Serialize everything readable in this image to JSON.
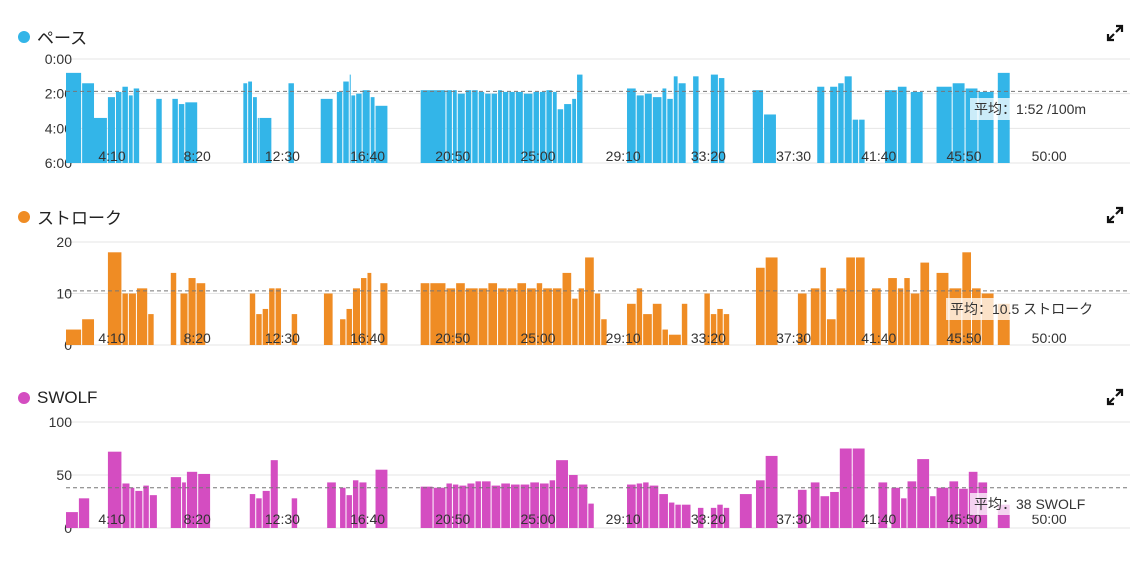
{
  "chart_data": [
    {
      "type": "bar",
      "title": "ペース",
      "color": "#33b5e8",
      "yticks": [
        "0:00",
        "2:00",
        "4:00",
        "6:00"
      ],
      "y_axis_inverted": true,
      "ylim": [
        0,
        6
      ],
      "xlim": [
        0,
        3300
      ],
      "xticks": [
        "4:10",
        "8:20",
        "12:30",
        "16:40",
        "20:50",
        "25:00",
        "29:10",
        "33:20",
        "37:30",
        "41:40",
        "45:50",
        "50:00"
      ],
      "average_value": 1.87,
      "average_label": "平均：1:52 /100m",
      "bars": [
        [
          0,
          50,
          0.8
        ],
        [
          50,
          90,
          1.4
        ],
        [
          70,
          130,
          3.4
        ],
        [
          130,
          155,
          2.2
        ],
        [
          155,
          175,
          1.9
        ],
        [
          175,
          195,
          1.6
        ],
        [
          195,
          210,
          2.1
        ],
        [
          210,
          230,
          1.7
        ],
        [
          280,
          300,
          2.3
        ],
        [
          330,
          350,
          2.3
        ],
        [
          350,
          370,
          2.6
        ],
        [
          370,
          410,
          2.5
        ],
        [
          550,
          565,
          1.4
        ],
        [
          565,
          580,
          1.3
        ],
        [
          580,
          595,
          2.2
        ],
        [
          595,
          600,
          3.4
        ],
        [
          600,
          640,
          3.4
        ],
        [
          690,
          710,
          1.4
        ],
        [
          790,
          830,
          2.3
        ],
        [
          840,
          860,
          1.9
        ],
        [
          860,
          880,
          1.3
        ],
        [
          880,
          885,
          0.9
        ],
        [
          885,
          900,
          2.1
        ],
        [
          900,
          920,
          2.0
        ],
        [
          920,
          945,
          1.8
        ],
        [
          945,
          960,
          2.2
        ],
        [
          960,
          1000,
          2.7
        ],
        [
          1100,
          1180,
          1.8
        ],
        [
          1180,
          1200,
          1.8
        ],
        [
          1200,
          1215,
          1.8
        ],
        [
          1215,
          1240,
          2.0
        ],
        [
          1240,
          1260,
          1.8
        ],
        [
          1260,
          1280,
          1.8
        ],
        [
          1280,
          1300,
          1.9
        ],
        [
          1300,
          1320,
          2.0
        ],
        [
          1320,
          1340,
          2.0
        ],
        [
          1340,
          1355,
          1.8
        ],
        [
          1355,
          1375,
          1.9
        ],
        [
          1375,
          1395,
          1.9
        ],
        [
          1395,
          1420,
          1.9
        ],
        [
          1420,
          1450,
          2.0
        ],
        [
          1450,
          1470,
          1.9
        ],
        [
          1470,
          1490,
          1.9
        ],
        [
          1490,
          1510,
          1.8
        ],
        [
          1510,
          1525,
          1.9
        ],
        [
          1525,
          1545,
          2.9
        ],
        [
          1545,
          1570,
          2.6
        ],
        [
          1570,
          1585,
          2.3
        ],
        [
          1585,
          1605,
          0.9
        ],
        [
          1740,
          1770,
          1.7
        ],
        [
          1770,
          1795,
          2.1
        ],
        [
          1795,
          1820,
          2.0
        ],
        [
          1820,
          1850,
          2.2
        ],
        [
          1850,
          1865,
          1.7
        ],
        [
          1865,
          1885,
          2.3
        ],
        [
          1885,
          1900,
          1.0
        ],
        [
          1900,
          1925,
          1.4
        ],
        [
          1945,
          1965,
          1.0
        ],
        [
          2000,
          2025,
          0.9
        ],
        [
          2025,
          2045,
          1.1
        ],
        [
          2130,
          2165,
          1.8
        ],
        [
          2165,
          2205,
          3.2
        ],
        [
          2330,
          2355,
          1.6
        ],
        [
          2370,
          2395,
          1.6
        ],
        [
          2395,
          2415,
          1.4
        ],
        [
          2415,
          2440,
          1.0
        ],
        [
          2440,
          2460,
          3.5
        ],
        [
          2460,
          2480,
          3.5
        ],
        [
          2540,
          2580,
          1.8
        ],
        [
          2580,
          2610,
          1.6
        ],
        [
          2620,
          2660,
          1.9
        ],
        [
          2700,
          2750,
          1.6
        ],
        [
          2750,
          2790,
          1.4
        ],
        [
          2790,
          2830,
          1.7
        ],
        [
          2830,
          2880,
          1.9
        ],
        [
          2890,
          2930,
          0.8
        ]
      ]
    },
    {
      "type": "bar",
      "title": "ストローク",
      "color": "#ef8c24",
      "yticks": [
        "20",
        "10",
        "0"
      ],
      "ylim": [
        0,
        20
      ],
      "xlim": [
        0,
        3300
      ],
      "xticks": [
        "4:10",
        "8:20",
        "12:30",
        "16:40",
        "20:50",
        "25:00",
        "29:10",
        "33:20",
        "37:30",
        "41:40",
        "45:50",
        "50:00"
      ],
      "average_value": 10.5,
      "average_label": "平均：10.5 ストローク",
      "bars": [
        [
          0,
          50,
          3
        ],
        [
          50,
          90,
          5
        ],
        [
          130,
          175,
          18
        ],
        [
          175,
          195,
          10
        ],
        [
          195,
          220,
          10
        ],
        [
          220,
          255,
          11
        ],
        [
          255,
          275,
          6
        ],
        [
          325,
          345,
          14
        ],
        [
          355,
          380,
          10
        ],
        [
          380,
          405,
          13
        ],
        [
          405,
          435,
          12
        ],
        [
          570,
          590,
          10
        ],
        [
          590,
          610,
          6
        ],
        [
          610,
          630,
          7
        ],
        [
          630,
          650,
          11
        ],
        [
          650,
          670,
          11
        ],
        [
          700,
          720,
          6
        ],
        [
          800,
          830,
          10
        ],
        [
          850,
          870,
          5
        ],
        [
          870,
          890,
          7
        ],
        [
          890,
          915,
          11
        ],
        [
          915,
          935,
          13
        ],
        [
          935,
          950,
          14
        ],
        [
          975,
          1000,
          12
        ],
        [
          1100,
          1130,
          12
        ],
        [
          1130,
          1180,
          12
        ],
        [
          1180,
          1210,
          11
        ],
        [
          1210,
          1240,
          12
        ],
        [
          1240,
          1280,
          11
        ],
        [
          1280,
          1310,
          11
        ],
        [
          1310,
          1340,
          12
        ],
        [
          1340,
          1370,
          11
        ],
        [
          1370,
          1400,
          11
        ],
        [
          1400,
          1430,
          12
        ],
        [
          1430,
          1460,
          11
        ],
        [
          1460,
          1480,
          12
        ],
        [
          1480,
          1510,
          11
        ],
        [
          1510,
          1540,
          11
        ],
        [
          1540,
          1570,
          14
        ],
        [
          1570,
          1590,
          9
        ],
        [
          1590,
          1610,
          11
        ],
        [
          1610,
          1640,
          17
        ],
        [
          1640,
          1660,
          10
        ],
        [
          1660,
          1680,
          5
        ],
        [
          1740,
          1770,
          8
        ],
        [
          1770,
          1790,
          11
        ],
        [
          1790,
          1820,
          6
        ],
        [
          1820,
          1850,
          8
        ],
        [
          1850,
          1870,
          3
        ],
        [
          1870,
          1910,
          2
        ],
        [
          1910,
          1930,
          8
        ],
        [
          1980,
          2000,
          10
        ],
        [
          2000,
          2020,
          6
        ],
        [
          2020,
          2040,
          7
        ],
        [
          2040,
          2060,
          6
        ],
        [
          2140,
          2170,
          15
        ],
        [
          2170,
          2210,
          17
        ],
        [
          2270,
          2300,
          10
        ],
        [
          2310,
          2340,
          11
        ],
        [
          2340,
          2360,
          15
        ],
        [
          2360,
          2390,
          5
        ],
        [
          2390,
          2420,
          11
        ],
        [
          2420,
          2450,
          17
        ],
        [
          2450,
          2480,
          17
        ],
        [
          2500,
          2530,
          11
        ],
        [
          2550,
          2580,
          13
        ],
        [
          2580,
          2600,
          11
        ],
        [
          2600,
          2620,
          13
        ],
        [
          2620,
          2650,
          10
        ],
        [
          2650,
          2680,
          16
        ],
        [
          2700,
          2740,
          14
        ],
        [
          2740,
          2780,
          11
        ],
        [
          2780,
          2810,
          18
        ],
        [
          2810,
          2840,
          11
        ],
        [
          2840,
          2880,
          10
        ],
        [
          2890,
          2930,
          8
        ]
      ]
    },
    {
      "type": "bar",
      "title": "SWOLF",
      "color": "#d44dc1",
      "yticks": [
        "100",
        "50",
        "0"
      ],
      "ylim": [
        0,
        100
      ],
      "xlim": [
        0,
        3300
      ],
      "xticks": [
        "4:10",
        "8:20",
        "12:30",
        "16:40",
        "20:50",
        "25:00",
        "29:10",
        "33:20",
        "37:30",
        "41:40",
        "45:50",
        "50:00"
      ],
      "average_value": 38,
      "average_label": "平均：38 SWOLF",
      "bars": [
        [
          0,
          40,
          15
        ],
        [
          40,
          75,
          28
        ],
        [
          130,
          175,
          72
        ],
        [
          175,
          200,
          42
        ],
        [
          200,
          215,
          38
        ],
        [
          215,
          240,
          35
        ],
        [
          240,
          260,
          40
        ],
        [
          260,
          285,
          31
        ],
        [
          325,
          360,
          48
        ],
        [
          360,
          375,
          43
        ],
        [
          375,
          410,
          53
        ],
        [
          410,
          450,
          51
        ],
        [
          570,
          590,
          32
        ],
        [
          590,
          610,
          28
        ],
        [
          610,
          635,
          35
        ],
        [
          635,
          660,
          64
        ],
        [
          700,
          720,
          28
        ],
        [
          810,
          840,
          43
        ],
        [
          850,
          870,
          38
        ],
        [
          870,
          890,
          31
        ],
        [
          890,
          910,
          45
        ],
        [
          910,
          935,
          43
        ],
        [
          960,
          1000,
          55
        ],
        [
          1100,
          1140,
          39
        ],
        [
          1140,
          1180,
          38
        ],
        [
          1180,
          1200,
          42
        ],
        [
          1200,
          1220,
          41
        ],
        [
          1220,
          1245,
          40
        ],
        [
          1245,
          1270,
          42
        ],
        [
          1270,
          1290,
          44
        ],
        [
          1290,
          1320,
          44
        ],
        [
          1320,
          1350,
          40
        ],
        [
          1350,
          1380,
          42
        ],
        [
          1380,
          1410,
          41
        ],
        [
          1410,
          1440,
          41
        ],
        [
          1440,
          1470,
          43
        ],
        [
          1470,
          1500,
          42
        ],
        [
          1500,
          1520,
          45
        ],
        [
          1520,
          1560,
          64
        ],
        [
          1560,
          1590,
          50
        ],
        [
          1590,
          1620,
          41
        ],
        [
          1620,
          1640,
          23
        ],
        [
          1740,
          1770,
          41
        ],
        [
          1770,
          1790,
          42
        ],
        [
          1790,
          1810,
          43
        ],
        [
          1810,
          1840,
          40
        ],
        [
          1840,
          1870,
          32
        ],
        [
          1870,
          1890,
          24
        ],
        [
          1890,
          1910,
          22
        ],
        [
          1910,
          1940,
          22
        ],
        [
          1960,
          1980,
          19
        ],
        [
          2000,
          2020,
          19
        ],
        [
          2020,
          2040,
          22
        ],
        [
          2040,
          2060,
          19
        ],
        [
          2090,
          2130,
          32
        ],
        [
          2140,
          2170,
          45
        ],
        [
          2170,
          2210,
          68
        ],
        [
          2270,
          2300,
          36
        ],
        [
          2310,
          2340,
          43
        ],
        [
          2340,
          2370,
          30
        ],
        [
          2370,
          2400,
          34
        ],
        [
          2400,
          2440,
          75
        ],
        [
          2440,
          2480,
          75
        ],
        [
          2520,
          2550,
          43
        ],
        [
          2560,
          2590,
          38
        ],
        [
          2590,
          2610,
          28
        ],
        [
          2610,
          2640,
          44
        ],
        [
          2640,
          2680,
          65
        ],
        [
          2680,
          2700,
          30
        ],
        [
          2700,
          2740,
          38
        ],
        [
          2740,
          2770,
          44
        ],
        [
          2770,
          2800,
          37
        ],
        [
          2800,
          2830,
          53
        ],
        [
          2830,
          2860,
          43
        ],
        [
          2890,
          2930,
          22
        ]
      ]
    }
  ]
}
